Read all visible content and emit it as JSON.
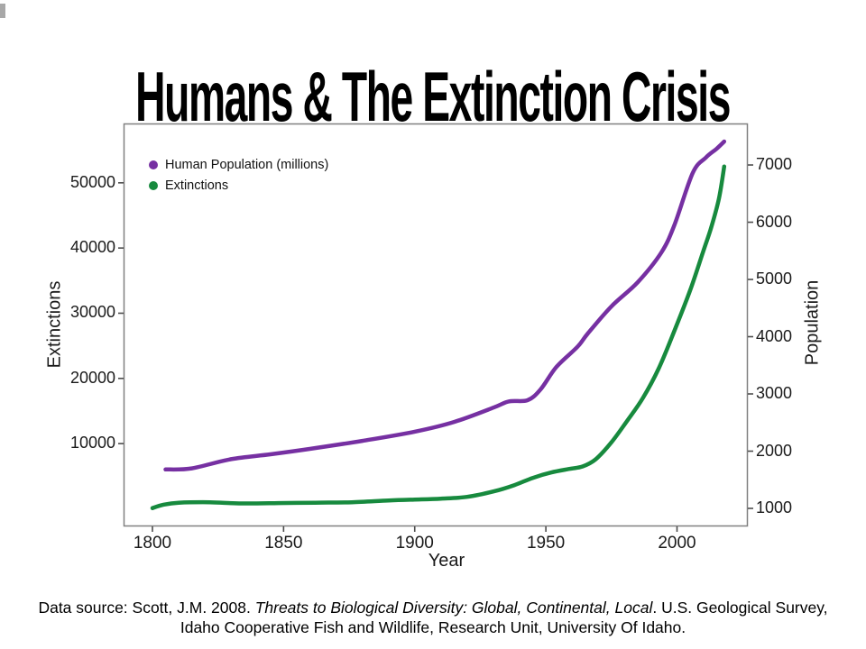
{
  "title": "Humans & The Extinction Crisis",
  "footer": {
    "line1_prefix": "Data source: Scott, J.M. 2008. ",
    "line1_italic": "Threats to Biological Diversity: Global, Continental, Local",
    "line1_suffix": ". U.S. Geological Survey,",
    "line2": "Idaho Cooperative Fish and Wildlife, Research Unit, University Of Idaho."
  },
  "chart_data": {
    "type": "line",
    "title": "Humans & The Extinction Crisis",
    "xlabel": "Year",
    "ylabel_left": "Extinctions",
    "ylabel_right": "Population",
    "grid": false,
    "legend_position": "top-left-inside",
    "x_ticks": [
      1800,
      1850,
      1900,
      1950,
      2000
    ],
    "x_range": [
      1789,
      2027
    ],
    "left_ticks": [
      10000,
      20000,
      30000,
      40000,
      50000
    ],
    "left_range": [
      -2700,
      59100
    ],
    "right_ticks": [
      1000,
      2000,
      3000,
      4000,
      5000,
      6000,
      7000
    ],
    "right_range": [
      685,
      7725
    ],
    "series": [
      {
        "name": "Human Population (millions)",
        "axis": "right",
        "color": "#7630A2",
        "points": [
          [
            1805,
            1680
          ],
          [
            1815,
            1700
          ],
          [
            1830,
            1860
          ],
          [
            1845,
            1945
          ],
          [
            1860,
            2040
          ],
          [
            1880,
            2180
          ],
          [
            1900,
            2340
          ],
          [
            1915,
            2510
          ],
          [
            1930,
            2760
          ],
          [
            1936,
            2870
          ],
          [
            1943,
            2890
          ],
          [
            1948,
            3080
          ],
          [
            1954,
            3470
          ],
          [
            1962,
            3820
          ],
          [
            1966,
            4055
          ],
          [
            1975,
            4530
          ],
          [
            1985,
            4950
          ],
          [
            1994,
            5470
          ],
          [
            1999,
            5950
          ],
          [
            2006,
            6860
          ],
          [
            2011,
            7130
          ],
          [
            2015,
            7280
          ],
          [
            2018,
            7410
          ]
        ]
      },
      {
        "name": "Extinctions",
        "axis": "left",
        "color": "#178A3E",
        "points": [
          [
            1800,
            100
          ],
          [
            1804,
            600
          ],
          [
            1810,
            930
          ],
          [
            1822,
            1000
          ],
          [
            1834,
            820
          ],
          [
            1848,
            880
          ],
          [
            1862,
            940
          ],
          [
            1876,
            1000
          ],
          [
            1890,
            1280
          ],
          [
            1900,
            1420
          ],
          [
            1910,
            1560
          ],
          [
            1920,
            1830
          ],
          [
            1930,
            2660
          ],
          [
            1938,
            3630
          ],
          [
            1945,
            4740
          ],
          [
            1952,
            5570
          ],
          [
            1959,
            6120
          ],
          [
            1964,
            6500
          ],
          [
            1969,
            7600
          ],
          [
            1975,
            10200
          ],
          [
            1981,
            13500
          ],
          [
            1987,
            17000
          ],
          [
            1993,
            21500
          ],
          [
            1999,
            27300
          ],
          [
            2005,
            33500
          ],
          [
            2010,
            39500
          ],
          [
            2013,
            43100
          ],
          [
            2016,
            47600
          ],
          [
            2018,
            52500
          ]
        ]
      }
    ]
  }
}
